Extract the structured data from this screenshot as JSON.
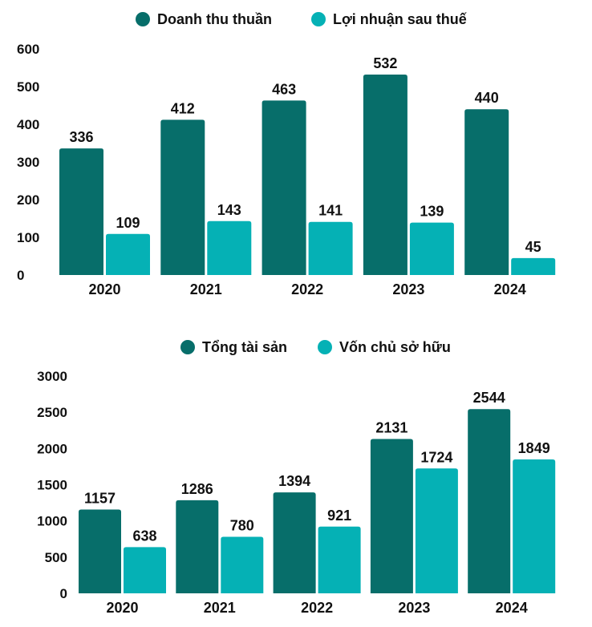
{
  "colors": {
    "dark": "#076e6a",
    "light": "#05b1b5"
  },
  "chart_data": [
    {
      "type": "bar",
      "categories": [
        "2020",
        "2021",
        "2022",
        "2023",
        "2024"
      ],
      "series": [
        {
          "name": "Doanh thu thuần",
          "values": [
            336,
            412,
            463,
            532,
            440
          ]
        },
        {
          "name": "Lợi nhuận sau thuế",
          "values": [
            109,
            143,
            141,
            139,
            45
          ]
        }
      ],
      "ylim": [
        0,
        600
      ],
      "yticks": [
        0,
        100,
        200,
        300,
        400,
        500,
        600
      ],
      "legend": "top-center",
      "grid": false
    },
    {
      "type": "bar",
      "categories": [
        "2020",
        "2021",
        "2022",
        "2023",
        "2024"
      ],
      "series": [
        {
          "name": "Tổng tài sản",
          "values": [
            1157,
            1286,
            1394,
            2131,
            2544
          ]
        },
        {
          "name": "Vốn chủ sở hữu",
          "values": [
            638,
            780,
            921,
            1724,
            1849
          ]
        }
      ],
      "ylim": [
        0,
        3000
      ],
      "yticks": [
        0,
        500,
        1000,
        1500,
        2000,
        2500,
        3000
      ],
      "legend": "top-center",
      "grid": false
    }
  ]
}
